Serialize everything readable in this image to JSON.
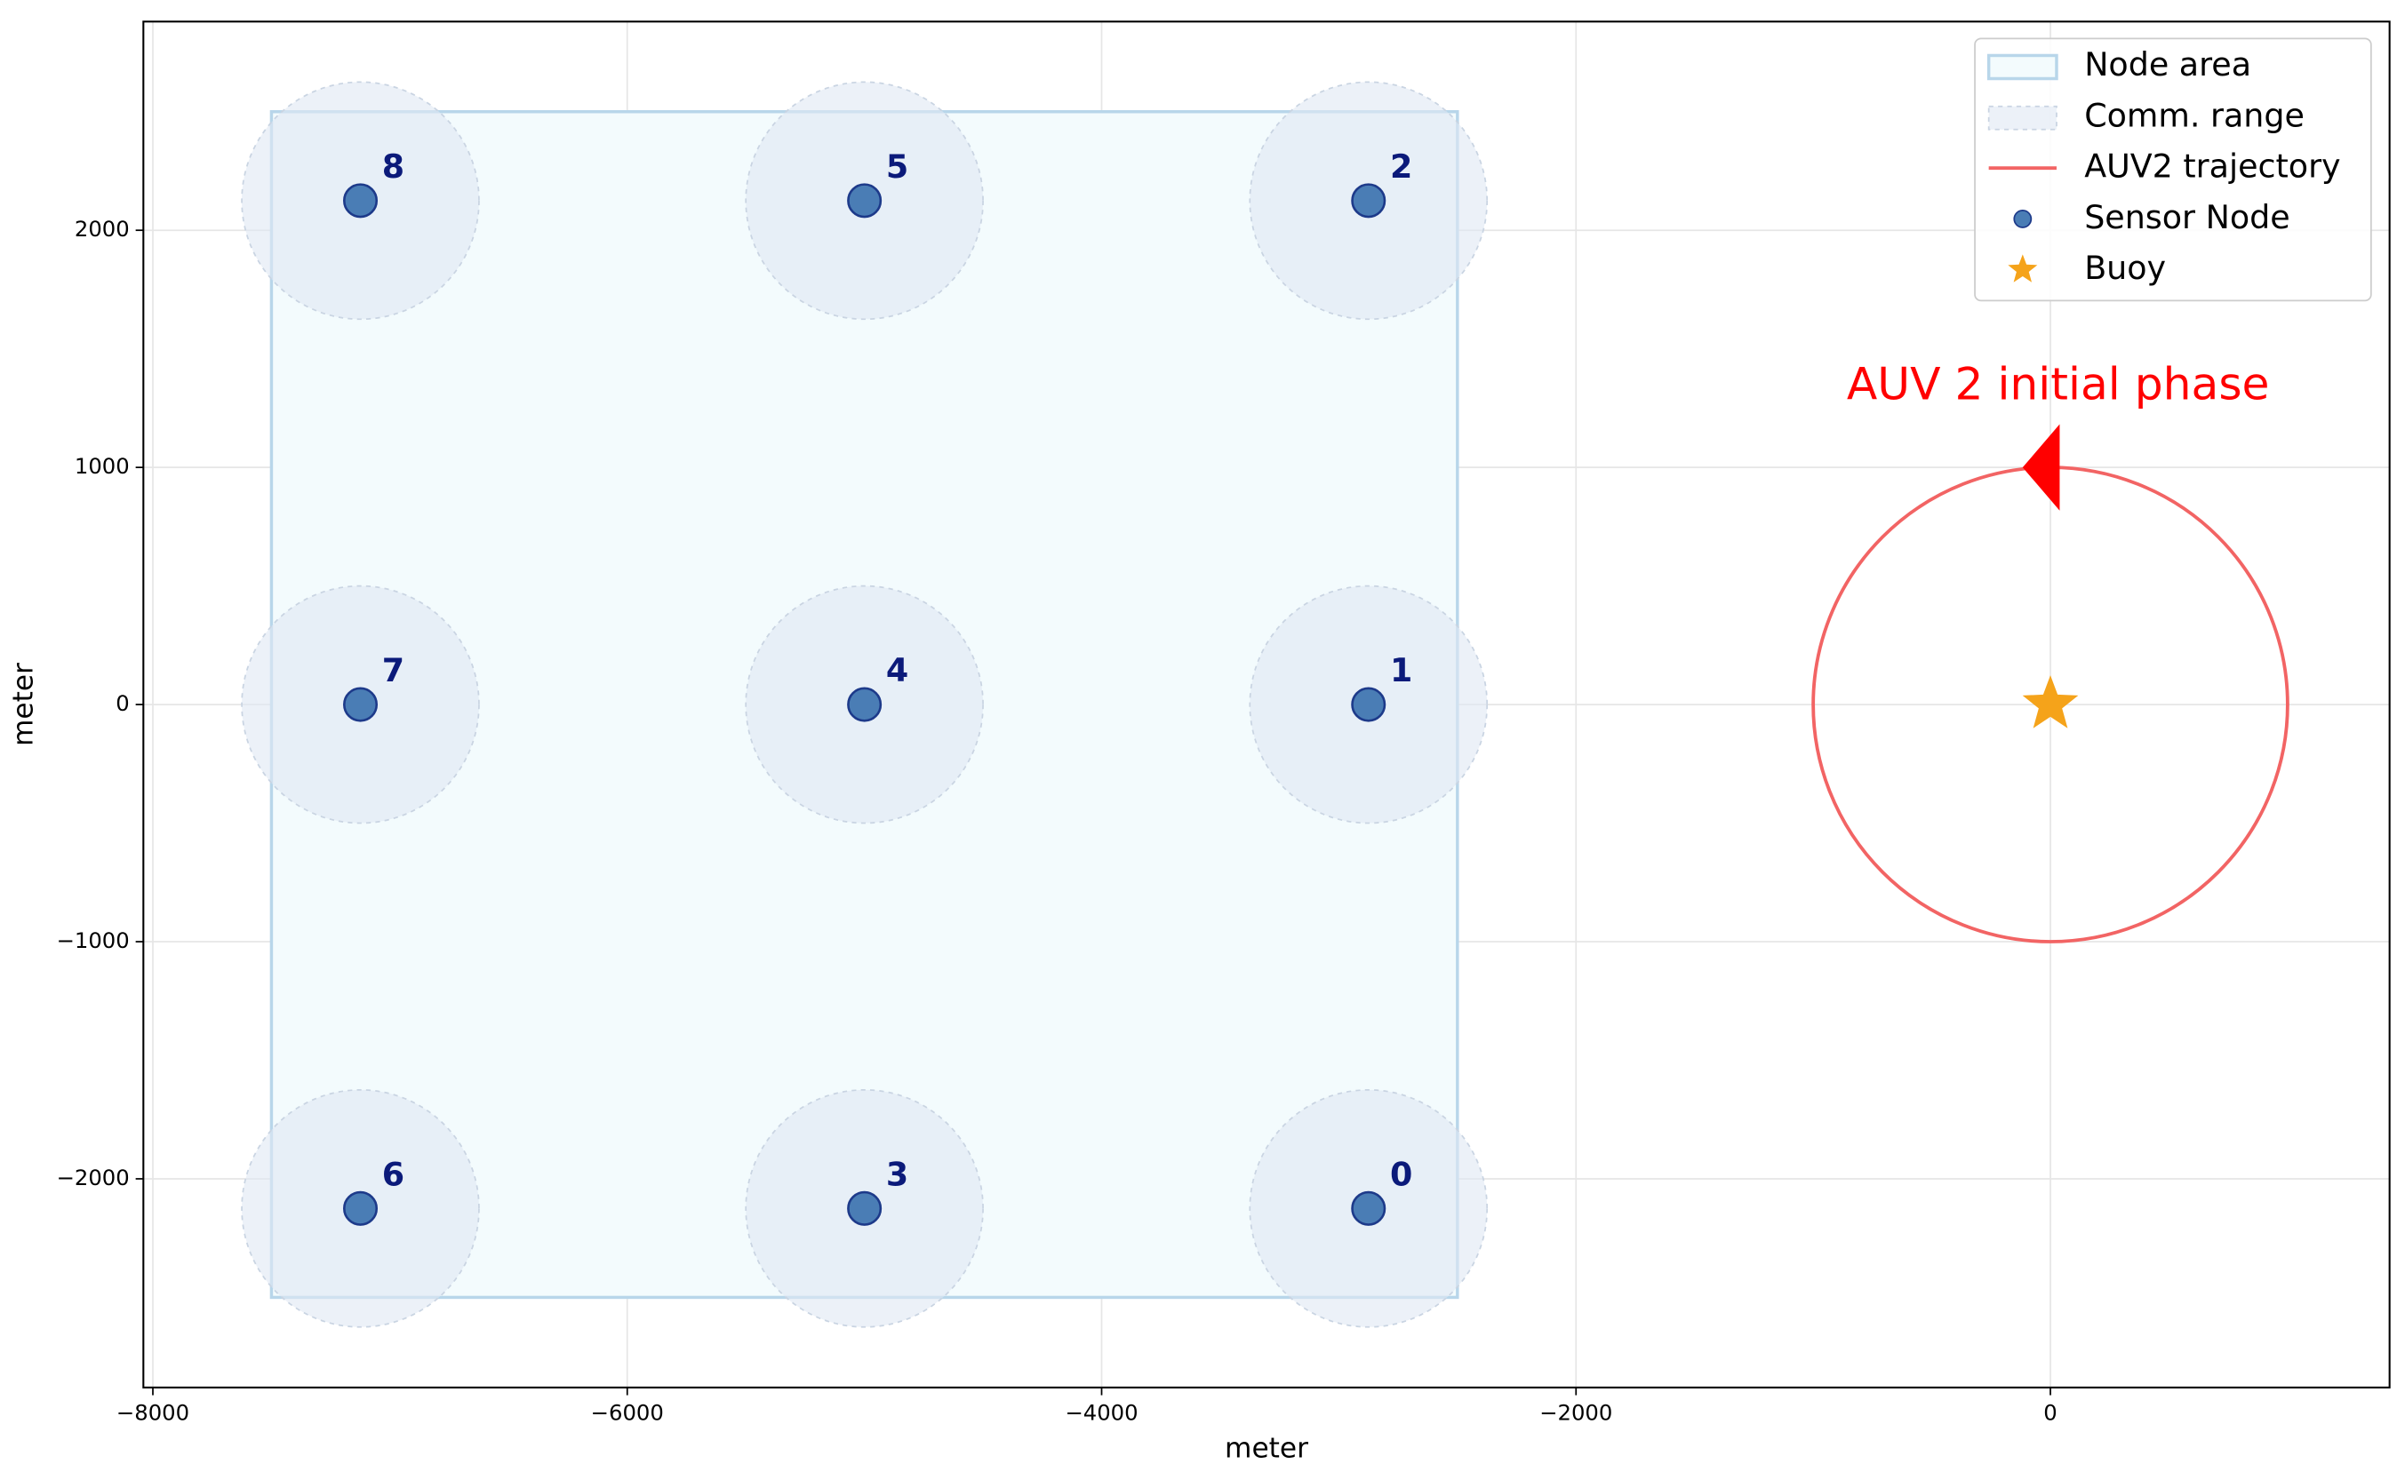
{
  "chart_data": {
    "type": "scatter",
    "xlabel": "meter",
    "ylabel": "meter",
    "xlim": [
      -8040,
      1430
    ],
    "ylim": [
      -2880,
      2880
    ],
    "xticks": [
      {
        "value": -8000,
        "label": "−8000"
      },
      {
        "value": -6000,
        "label": "−6000"
      },
      {
        "value": -4000,
        "label": "−4000"
      },
      {
        "value": -2000,
        "label": "−2000"
      },
      0
    ],
    "yticks": [
      {
        "value": -2000,
        "label": "−2000"
      },
      {
        "value": -1000,
        "label": "−1000"
      },
      0,
      1000,
      2000
    ],
    "grid": true,
    "legend": "upper right",
    "node_area": {
      "name": "Node area",
      "color": "#b8d6ea",
      "x": [
        -7500,
        -2500
      ],
      "y": [
        -2500,
        2500
      ]
    },
    "comm_range": {
      "name": "Comm. range",
      "color": "#dfe8f3",
      "radius": 500
    },
    "trajectory": {
      "name": "AUV2 trajectory",
      "color": "#f26464",
      "center": [
        0,
        0
      ],
      "radius": 1000
    },
    "series": [
      {
        "name": "Sensor Node",
        "color": "#4a7db5",
        "x": [
          -2875,
          -2875,
          -2875,
          -5000,
          -5000,
          -5000,
          -7125,
          -7125,
          -7125
        ],
        "values": [
          -2125,
          0,
          2125,
          -2125,
          0,
          2125,
          -2125,
          0,
          2125
        ],
        "labels": [
          "0",
          "1",
          "2",
          "3",
          "4",
          "5",
          "6",
          "7",
          "8"
        ]
      },
      {
        "name": "Buoy",
        "color": "#f5a31a",
        "x": [
          0
        ],
        "values": [
          0
        ]
      }
    ],
    "annotation": {
      "text": "AUV 2 initial phase",
      "color": "#ff0000"
    }
  }
}
